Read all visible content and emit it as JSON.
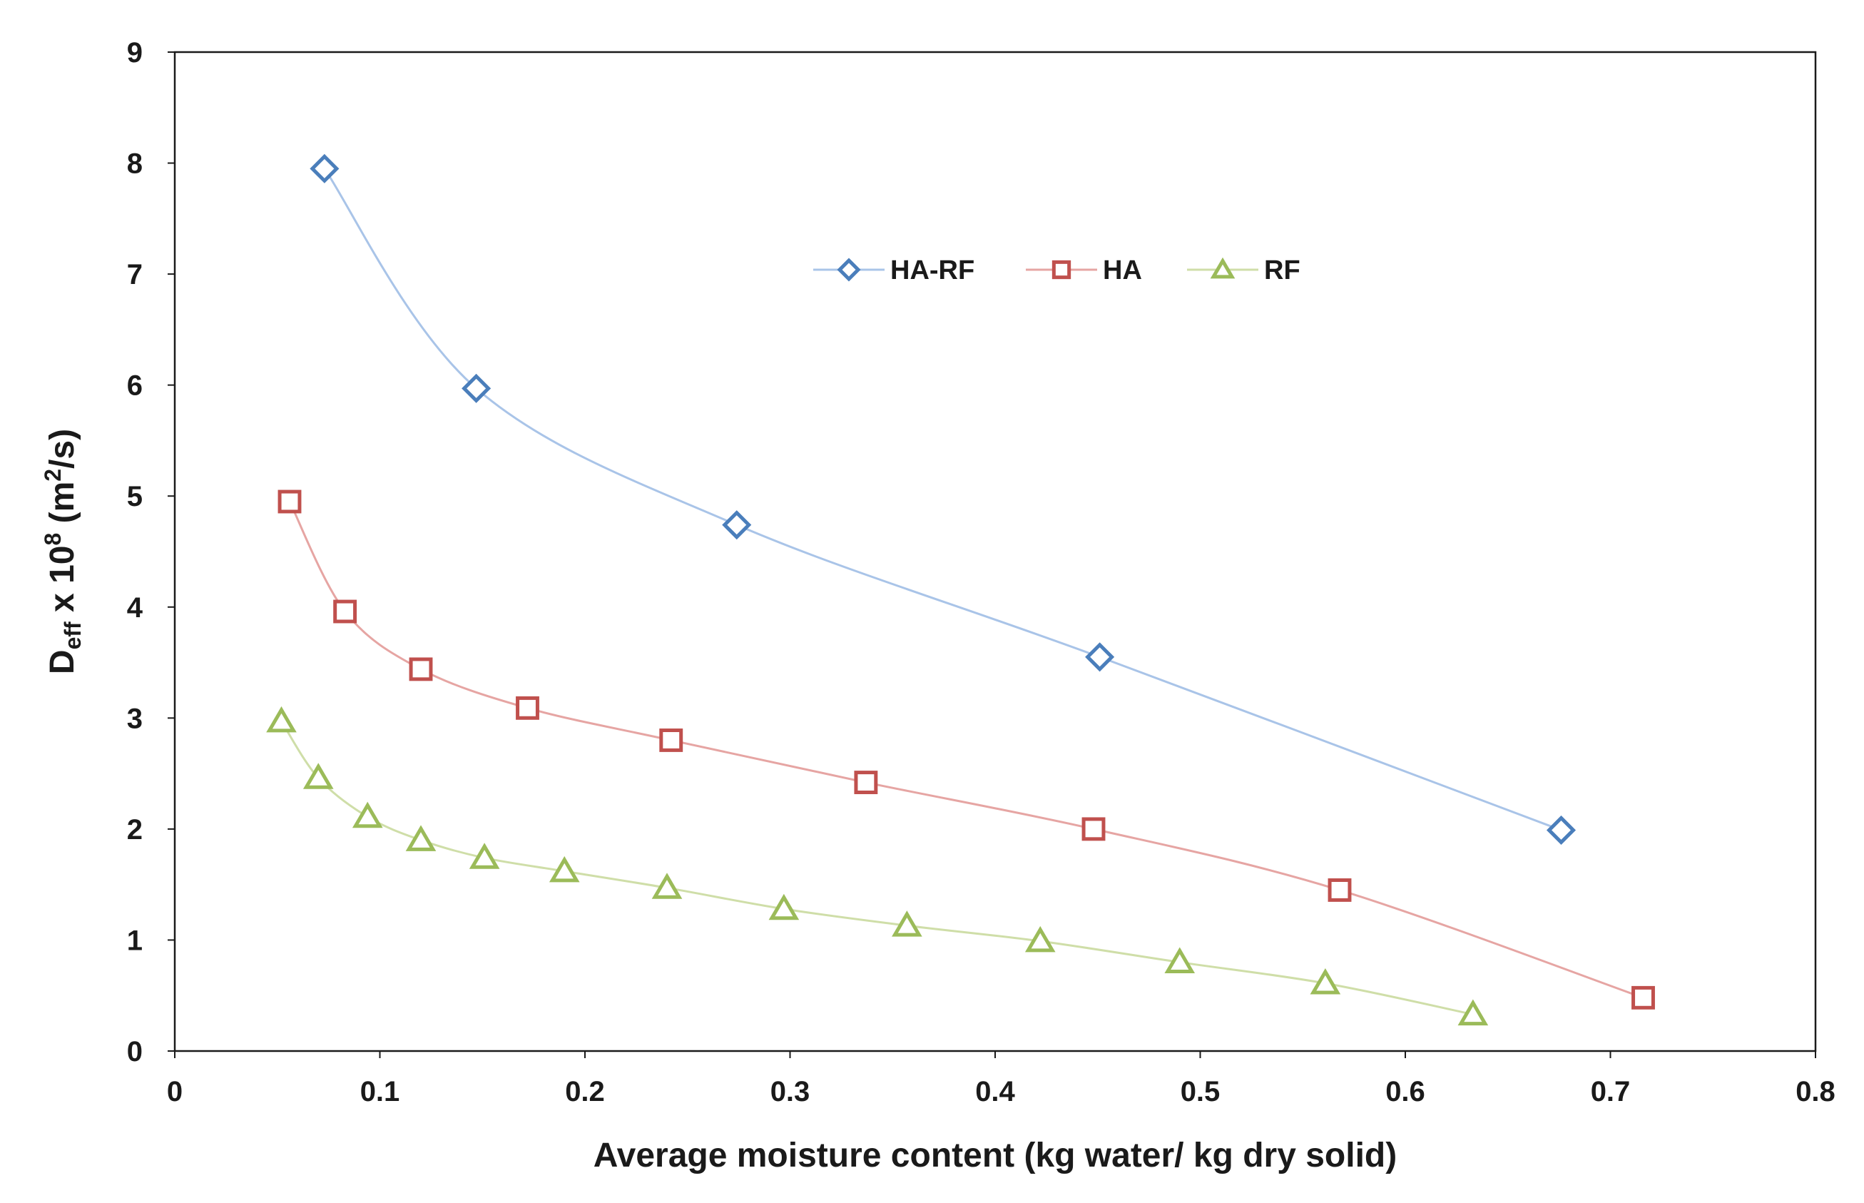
{
  "chart_data": {
    "type": "line",
    "title": "",
    "xlabel": "Average moisture content (kg water/ kg dry solid)",
    "ylabel": {
      "main": "D",
      "sub": "eff",
      "mid": " x 10",
      "sup1": "8",
      "unit_open": " (m",
      "sup2": "2",
      "unit_close": "/s)"
    },
    "xlim": [
      0,
      0.8
    ],
    "ylim": [
      0,
      9
    ],
    "xticks": [
      "0",
      "0.1",
      "0.2",
      "0.3",
      "0.4",
      "0.5",
      "0.6",
      "0.7",
      "0.8"
    ],
    "yticks": [
      "0",
      "1",
      "2",
      "3",
      "4",
      "5",
      "6",
      "7",
      "8",
      "9"
    ],
    "legend_position": "top-center",
    "grid": false,
    "series": [
      {
        "name": "HA-RF",
        "marker": "diamond",
        "marker_color": "#4a7ebb",
        "line_color": "#a9c4e8",
        "x": [
          0.073,
          0.147,
          0.274,
          0.451,
          0.676
        ],
        "y": [
          7.95,
          5.97,
          4.74,
          3.55,
          1.99
        ]
      },
      {
        "name": "HA",
        "marker": "square",
        "marker_color": "#c0504d",
        "line_color": "#e6a5a3",
        "x": [
          0.056,
          0.083,
          0.12,
          0.172,
          0.242,
          0.337,
          0.448,
          0.568,
          0.716
        ],
        "y": [
          4.95,
          3.96,
          3.44,
          3.09,
          2.8,
          2.42,
          2.0,
          1.45,
          0.48
        ]
      },
      {
        "name": "RF",
        "marker": "triangle",
        "marker_color": "#9bbb59",
        "line_color": "#cfdea8",
        "x": [
          0.052,
          0.07,
          0.094,
          0.12,
          0.151,
          0.19,
          0.24,
          0.297,
          0.357,
          0.422,
          0.49,
          0.561,
          0.633
        ],
        "y": [
          2.97,
          2.46,
          2.11,
          1.9,
          1.74,
          1.62,
          1.47,
          1.28,
          1.13,
          0.99,
          0.8,
          0.61,
          0.33
        ]
      }
    ]
  }
}
